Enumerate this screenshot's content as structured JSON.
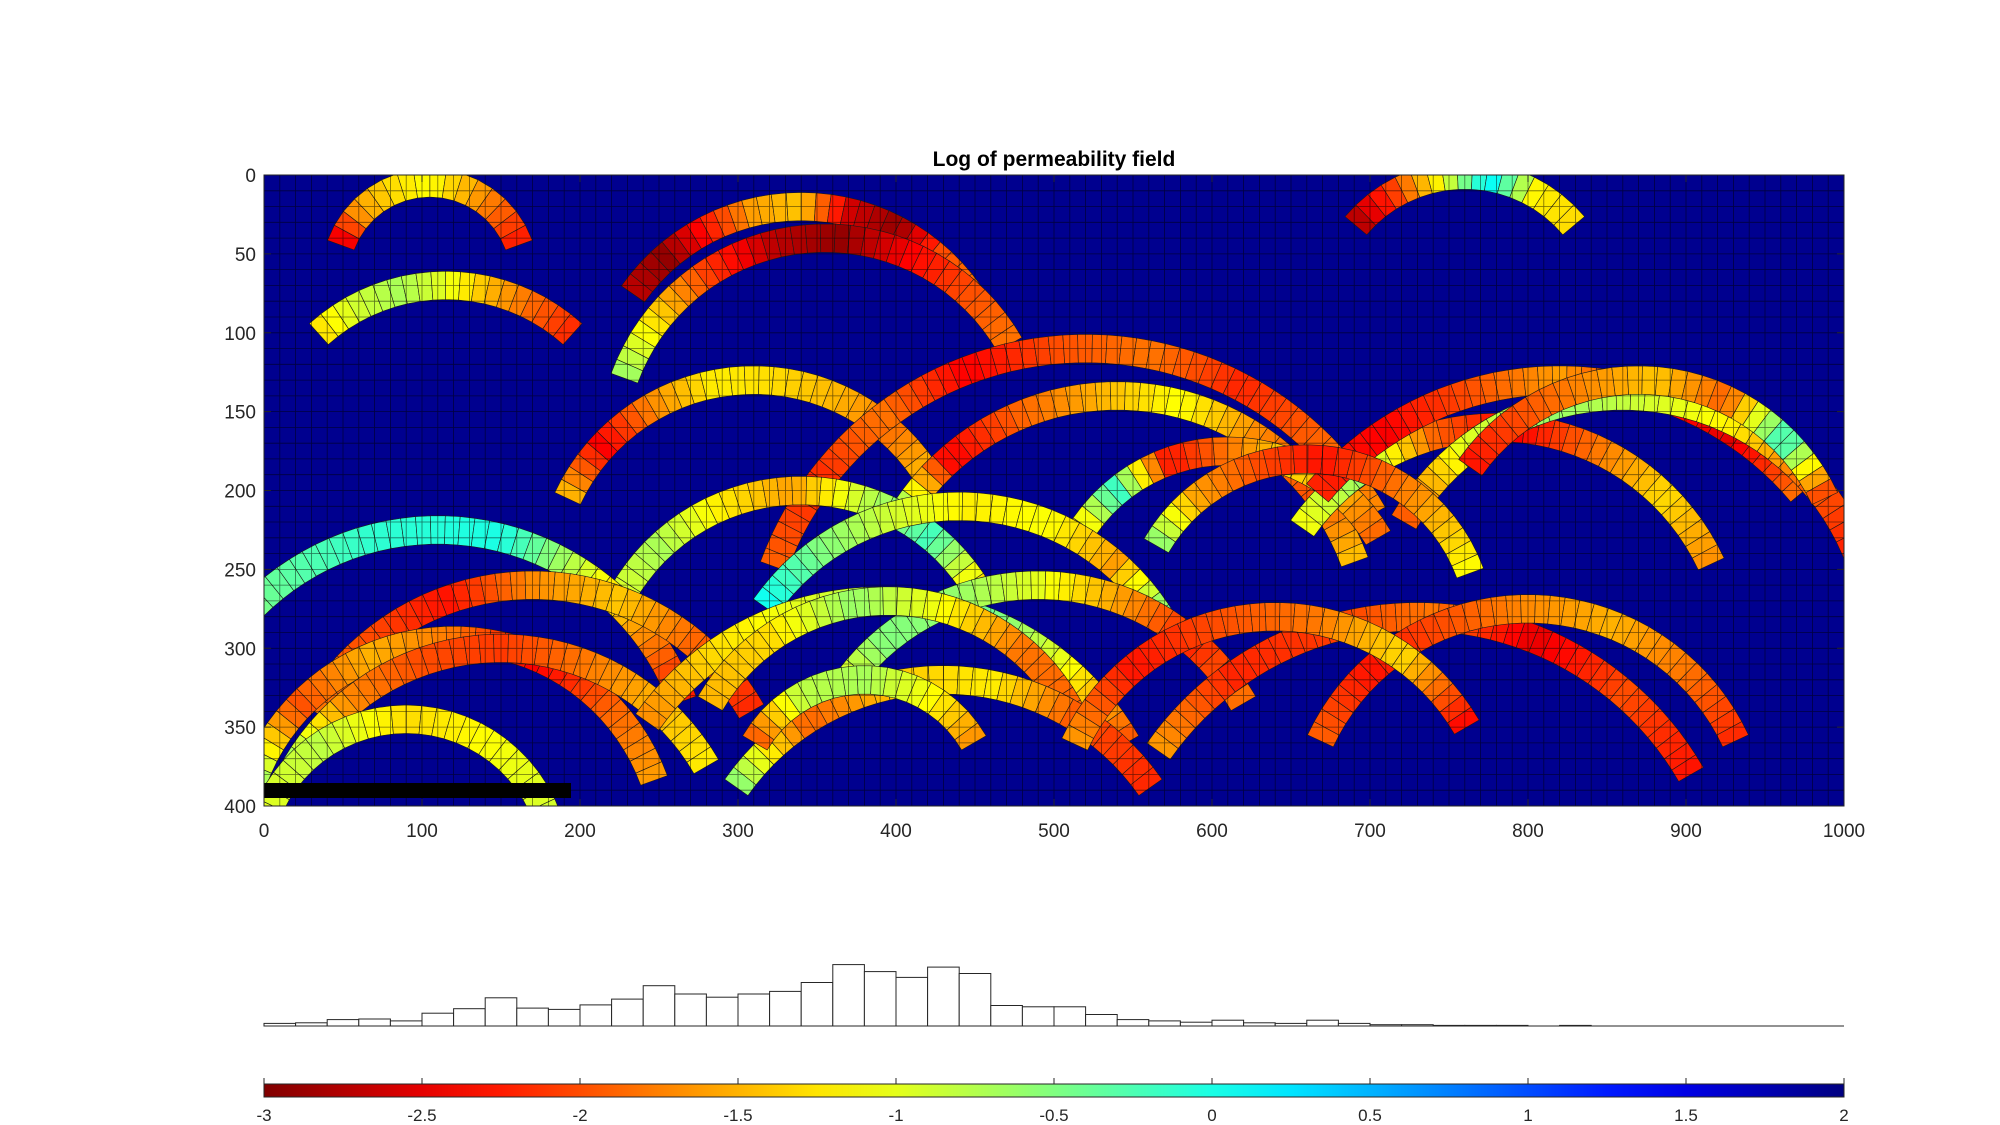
{
  "chart_data": [
    {
      "type": "heatmap",
      "title": "Log of permeability field",
      "xlabel": "",
      "ylabel": "",
      "xlim": [
        0,
        1000
      ],
      "ylim": [
        0,
        400
      ],
      "y_reversed": true,
      "xticks": [
        0,
        100,
        200,
        300,
        400,
        500,
        600,
        700,
        800,
        900,
        1000
      ],
      "yticks": [
        0,
        50,
        100,
        150,
        200,
        250,
        300,
        350,
        400
      ],
      "background_value": 2,
      "grid_spacing": 10,
      "colormap": "jet",
      "arcs": [
        {
          "cx": 105,
          "cy": 65,
          "r": 60,
          "a0": 200,
          "a1": 340,
          "v": [
            -2.6,
            -1.6,
            -1.3,
            -1.1,
            -1.5,
            -1.9,
            -2.3
          ]
        },
        {
          "cx": 115,
          "cy": 190,
          "r": 120,
          "a0": 228,
          "a1": 312,
          "v": [
            -1.3,
            -0.9,
            -0.7,
            -1.0,
            -1.5,
            -1.9,
            -2.2
          ]
        },
        {
          "cx": 340,
          "cy": 150,
          "r": 130,
          "a0": 215,
          "a1": 325,
          "v": [
            -2.7,
            -2.9,
            -2.3,
            -1.6,
            -1.4,
            -2.6,
            -2.9,
            -2.0,
            -1.8
          ]
        },
        {
          "cx": 355,
          "cy": 175,
          "r": 135,
          "a0": 200,
          "a1": 330,
          "v": [
            -0.6,
            -1.3,
            -2.1,
            -2.7,
            -2.9,
            -2.4,
            -2.0,
            -1.8
          ]
        },
        {
          "cx": 760,
          "cy": 90,
          "r": 90,
          "a0": 220,
          "a1": 320,
          "v": [
            -2.8,
            -2.1,
            -1.1,
            0.2,
            -1.2,
            -1.3
          ]
        },
        {
          "cx": 310,
          "cy": 260,
          "r": 130,
          "a0": 205,
          "a1": 330,
          "v": [
            -1.4,
            -2.4,
            -1.7,
            -1.2,
            -1.3,
            -1.5,
            -1.8,
            -1.4
          ]
        },
        {
          "cx": 520,
          "cy": 320,
          "r": 210,
          "a0": 200,
          "a1": 330,
          "v": [
            -1.9,
            -2.2,
            -1.8,
            -2.4,
            -2.0,
            -1.8,
            -2.2,
            -1.9,
            -1.7
          ]
        },
        {
          "cx": 540,
          "cy": 300,
          "r": 160,
          "a0": 210,
          "a1": 340,
          "v": [
            -0.2,
            -2.4,
            -1.9,
            -1.5,
            -1.1,
            -1.7,
            -2.0,
            -1.4
          ]
        },
        {
          "cx": 610,
          "cy": 285,
          "r": 110,
          "a0": 210,
          "a1": 330,
          "v": [
            -1.6,
            -0.1,
            -2.3,
            -1.8,
            -1.3,
            -1.5,
            -1.9
          ]
        },
        {
          "cx": 780,
          "cy": 310,
          "r": 150,
          "a0": 215,
          "a1": 335,
          "v": [
            -1.1,
            -0.6,
            -1.9,
            -2.4,
            -1.8,
            -1.3,
            -1.7
          ]
        },
        {
          "cx": 820,
          "cy": 330,
          "r": 200,
          "a0": 220,
          "a1": 320,
          "v": [
            -2.2,
            -2.4,
            -2.0,
            -1.6,
            -2.3,
            -2.5,
            -1.8
          ]
        },
        {
          "cx": 860,
          "cy": 300,
          "r": 160,
          "a0": 210,
          "a1": 340,
          "v": [
            -2.0,
            -1.0,
            -0.6,
            -0.9,
            -1.2,
            -1.9,
            -2.3
          ]
        },
        {
          "cx": 870,
          "cy": 260,
          "r": 130,
          "a0": 215,
          "a1": 335,
          "v": [
            -2.3,
            -2.0,
            -1.7,
            -1.4,
            -1.9,
            -0.1,
            -2.2
          ]
        },
        {
          "cx": 660,
          "cy": 290,
          "r": 110,
          "a0": 210,
          "a1": 340,
          "v": [
            -0.5,
            -1.6,
            -2.0,
            -2.3,
            -1.9,
            -1.5,
            -1.1
          ]
        },
        {
          "cx": 340,
          "cy": 330,
          "r": 130,
          "a0": 205,
          "a1": 330,
          "v": [
            -1.0,
            -0.7,
            -1.2,
            -1.6,
            -0.8,
            -0.2,
            -1.4
          ]
        },
        {
          "cx": 440,
          "cy": 360,
          "r": 150,
          "a0": 215,
          "a1": 330,
          "v": [
            0.1,
            -0.5,
            -0.9,
            -1.2,
            -1.1,
            -1.6,
            -0.3
          ]
        },
        {
          "cx": 110,
          "cy": 390,
          "r": 165,
          "a0": 200,
          "a1": 340,
          "v": [
            -1.2,
            -0.4,
            -0.1,
            0.0,
            -1.3,
            -2.3
          ]
        },
        {
          "cx": 170,
          "cy": 420,
          "r": 160,
          "a0": 210,
          "a1": 330,
          "v": [
            -1.8,
            -2.0,
            -2.3,
            -1.7,
            -1.4,
            -1.9,
            -2.2
          ]
        },
        {
          "cx": 120,
          "cy": 430,
          "r": 135,
          "a0": 200,
          "a1": 340,
          "v": [
            -0.6,
            -2.0,
            -1.5,
            -1.8,
            -2.4,
            -1.9,
            -1.6
          ]
        },
        {
          "cx": 150,
          "cy": 450,
          "r": 150,
          "a0": 210,
          "a1": 330,
          "v": [
            -0.6,
            -1.7,
            -2.0,
            -2.1,
            -1.8,
            -1.5,
            -1.2
          ]
        },
        {
          "cx": 90,
          "cy": 440,
          "r": 95,
          "a0": 200,
          "a1": 340,
          "v": [
            -1.0,
            -0.8,
            -1.3,
            -1.1,
            -0.9
          ]
        },
        {
          "cx": 390,
          "cy": 450,
          "r": 180,
          "a0": 215,
          "a1": 330,
          "v": [
            -1.7,
            -1.3,
            -1.0,
            -0.7,
            -0.4,
            -1.1,
            -2.0
          ]
        },
        {
          "cx": 490,
          "cy": 410,
          "r": 150,
          "a0": 210,
          "a1": 330,
          "v": [
            -1.2,
            -0.5,
            -0.6,
            -1.0,
            -1.6,
            -2.2,
            -1.8
          ]
        },
        {
          "cx": 395,
          "cy": 400,
          "r": 130,
          "a0": 210,
          "a1": 335,
          "v": [
            -1.5,
            -1.3,
            -0.6,
            -1.1,
            -1.8,
            -1.9
          ]
        },
        {
          "cx": 430,
          "cy": 480,
          "r": 160,
          "a0": 215,
          "a1": 325,
          "v": [
            -0.5,
            -1.9,
            -1.4,
            -1.2,
            -2.0,
            -2.2
          ]
        },
        {
          "cx": 730,
          "cy": 480,
          "r": 200,
          "a0": 215,
          "a1": 330,
          "v": [
            -1.6,
            -2.2,
            -2.1,
            -1.8,
            -2.5,
            -2.0,
            -2.3
          ]
        },
        {
          "cx": 800,
          "cy": 420,
          "r": 145,
          "a0": 205,
          "a1": 335,
          "v": [
            -1.9,
            -2.3,
            -2.0,
            -1.7,
            -1.5,
            -1.8,
            -2.2
          ]
        },
        {
          "cx": 380,
          "cy": 400,
          "r": 80,
          "a0": 210,
          "a1": 330,
          "v": [
            -2.0,
            -0.8,
            -0.7,
            -1.1,
            -1.7
          ]
        },
        {
          "cx": 640,
          "cy": 420,
          "r": 140,
          "a0": 205,
          "a1": 330,
          "v": [
            -1.6,
            -2.3,
            -2.0,
            -1.8,
            -1.3,
            -2.4
          ]
        }
      ]
    },
    {
      "type": "histogram",
      "bin_counts": [
        0.4,
        0.5,
        1.0,
        1.1,
        0.8,
        2.0,
        2.7,
        4.4,
        2.8,
        2.6,
        3.3,
        4.2,
        6.3,
        5.0,
        4.5,
        5.0,
        5.4,
        6.8,
        9.6,
        8.5,
        7.6,
        9.2,
        8.2,
        3.2,
        3.0,
        3.0,
        1.8,
        1.0,
        0.8,
        0.6,
        0.9,
        0.5,
        0.4,
        0.9,
        0.4,
        0.2,
        0.2,
        0.1,
        0.1,
        0.1,
        0.0,
        0.1,
        0.0,
        0.0,
        0.0,
        0.0,
        0.0,
        0.0,
        0.0,
        0.0
      ]
    },
    {
      "type": "colorbar",
      "colormap": "jet_reversed",
      "range": [
        -3,
        2
      ],
      "tick_labels": [
        "-3",
        "-2.5",
        "-2",
        "-1.5",
        "-1",
        "-0.5",
        "0",
        "0.5",
        "1",
        "1.5",
        "2"
      ]
    }
  ]
}
